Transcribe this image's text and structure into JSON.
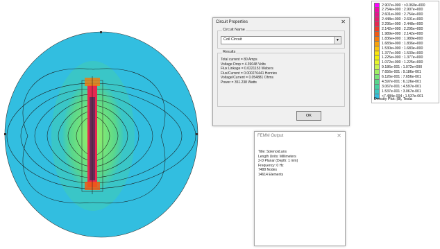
{
  "circuit_dialog": {
    "title": "Circuit Properties",
    "name_group_label": "Circuit Name",
    "circuit_name": "Coil Circuit",
    "results_group_label": "Results",
    "results": [
      "Total current = 80 Amps",
      "Voltage Drop = 4.39048 Volts",
      "Flux Linkage = 0.0221153 Webers",
      "Flux/Current = 0.000276441 Henries",
      "Voltage/Current = 0.054881 Ohms",
      "Power = 351.238 Watts"
    ],
    "ok_label": "OK"
  },
  "femm_output": {
    "title": "FEMM Output",
    "lines": [
      "Title: Solenoid.ans",
      "Length Units: Millimeters",
      "2-D Planar (Depth: 1 mm)",
      "Frequency: 0 Hz",
      "",
      "7488 Nodes",
      "14614 Elements"
    ]
  },
  "legend": {
    "entries": [
      {
        "label": "2.907e+000 : >3.060e+000",
        "color": "#ff00ff"
      },
      {
        "label": "2.754e+000 : 2.907e+000",
        "color": "#f20aa6"
      },
      {
        "label": "2.601e+000 : 2.754e+000",
        "color": "#e6148c"
      },
      {
        "label": "2.448e+000 : 2.601e+000",
        "color": "#e61e6e"
      },
      {
        "label": "2.295e+000 : 2.448e+000",
        "color": "#e62850"
      },
      {
        "label": "2.142e+000 : 2.295e+000",
        "color": "#ee3c28"
      },
      {
        "label": "1.989e+000 : 2.142e+000",
        "color": "#f05a14"
      },
      {
        "label": "1.836e+000 : 1.989e+000",
        "color": "#f57a0a"
      },
      {
        "label": "1.683e+000 : 1.836e+000",
        "color": "#f9a00a"
      },
      {
        "label": "1.530e+000 : 1.683e+000",
        "color": "#fcc30a"
      },
      {
        "label": "1.377e+000 : 1.530e+000",
        "color": "#fce40a"
      },
      {
        "label": "1.225e+000 : 1.377e+000",
        "color": "#f0f00a"
      },
      {
        "label": "1.072e+000 : 1.225e+000",
        "color": "#e6f528"
      },
      {
        "label": "9.186e-001 : 1.072e+000",
        "color": "#c8f550"
      },
      {
        "label": "7.656e-001 : 9.186e-001",
        "color": "#a0f064"
      },
      {
        "label": "6.126e-001 : 7.656e-001",
        "color": "#78e678"
      },
      {
        "label": "4.597e-001 : 6.126e-001",
        "color": "#5ad78c"
      },
      {
        "label": "3.067e-001 : 4.597e-001",
        "color": "#46d2a0"
      },
      {
        "label": "1.537e-001 : 3.067e-001",
        "color": "#3cc8c0"
      },
      {
        "label": "<7.484e-004 : 1.537e-001",
        "color": "#32bee0"
      }
    ],
    "footer": "Density Plot: |B|, Tesla"
  },
  "plot": {
    "field_colors": {
      "background": "#32bee0",
      "outer": "#3cc8c0",
      "mid": "#5ad78c",
      "inner": "#a0f064",
      "core": "#e62850",
      "core_dark": "#6a2a5a"
    }
  }
}
